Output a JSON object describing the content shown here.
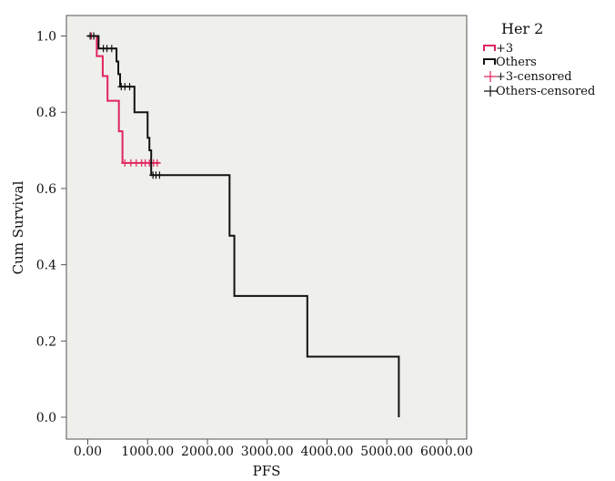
{
  "chart_data": {
    "type": "line",
    "subtype": "kaplan-meier step",
    "xlabel": "PFS",
    "ylabel": "Cum Survival",
    "xlim": [
      0,
      6000
    ],
    "ylim": [
      0,
      1.0
    ],
    "x_ticks": [
      "0.00",
      "1000.00",
      "2000.00",
      "3000.00",
      "4000.00",
      "5000.00",
      "6000.00"
    ],
    "y_ticks": [
      "0.0",
      "0.2",
      "0.4",
      "0.6",
      "0.8",
      "1.0"
    ],
    "legend": {
      "title": "Her  2",
      "placement": "outside-right-top",
      "entries": [
        "+3",
        "Others",
        "+3-censored",
        "Others-censored"
      ]
    },
    "plot_background": "#efefeb",
    "series": [
      {
        "name": "+3",
        "color": "#e0245e",
        "steps": [
          [
            0,
            1.0
          ],
          [
            150,
            0.947
          ],
          [
            250,
            0.895
          ],
          [
            300,
            0.895
          ],
          [
            330,
            0.83
          ],
          [
            490,
            0.83
          ],
          [
            520,
            0.75
          ],
          [
            580,
            0.667
          ],
          [
            1200,
            0.667
          ]
        ],
        "censored": [
          [
            60,
            1.0
          ],
          [
            620,
            0.667
          ],
          [
            720,
            0.667
          ],
          [
            810,
            0.667
          ],
          [
            900,
            0.667
          ],
          [
            960,
            0.667
          ],
          [
            1030,
            0.667
          ],
          [
            1100,
            0.667
          ],
          [
            1160,
            0.667
          ]
        ]
      },
      {
        "name": "Others",
        "color": "#111111",
        "steps": [
          [
            0,
            1.0
          ],
          [
            180,
            0.967
          ],
          [
            480,
            0.933
          ],
          [
            510,
            0.9
          ],
          [
            540,
            0.867
          ],
          [
            780,
            0.8
          ],
          [
            1000,
            0.733
          ],
          [
            1030,
            0.7
          ],
          [
            1060,
            0.635
          ],
          [
            2370,
            0.635
          ],
          [
            2370,
            0.476
          ],
          [
            2450,
            0.476
          ],
          [
            2450,
            0.318
          ],
          [
            3670,
            0.318
          ],
          [
            3670,
            0.159
          ],
          [
            5200,
            0.159
          ],
          [
            5200,
            0.0
          ]
        ],
        "censored": [
          [
            40,
            1.0
          ],
          [
            100,
            1.0
          ],
          [
            260,
            0.967
          ],
          [
            320,
            0.967
          ],
          [
            400,
            0.967
          ],
          [
            560,
            0.867
          ],
          [
            620,
            0.867
          ],
          [
            700,
            0.867
          ],
          [
            1090,
            0.635
          ],
          [
            1140,
            0.635
          ],
          [
            1200,
            0.635
          ]
        ]
      }
    ]
  }
}
